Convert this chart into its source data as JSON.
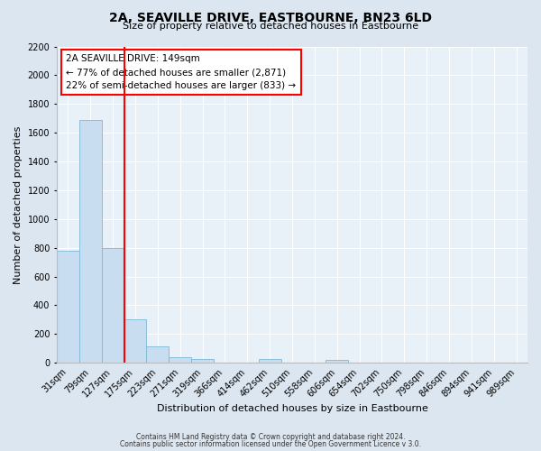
{
  "title": "2A, SEAVILLE DRIVE, EASTBOURNE, BN23 6LD",
  "subtitle": "Size of property relative to detached houses in Eastbourne",
  "xlabel": "Distribution of detached houses by size in Eastbourne",
  "ylabel": "Number of detached properties",
  "bar_labels": [
    "31sqm",
    "79sqm",
    "127sqm",
    "175sqm",
    "223sqm",
    "271sqm",
    "319sqm",
    "366sqm",
    "414sqm",
    "462sqm",
    "510sqm",
    "558sqm",
    "606sqm",
    "654sqm",
    "702sqm",
    "750sqm",
    "798sqm",
    "846sqm",
    "894sqm",
    "941sqm",
    "989sqm"
  ],
  "bar_values": [
    780,
    1690,
    800,
    300,
    115,
    38,
    28,
    0,
    0,
    25,
    0,
    0,
    20,
    0,
    0,
    0,
    0,
    0,
    0,
    0,
    0
  ],
  "bar_color": "#c9ddf0",
  "bar_edge_color": "#7db8d8",
  "vline_x": 2.5,
  "vline_color": "red",
  "annotation_title": "2A SEAVILLE DRIVE: 149sqm",
  "annotation_line1": "← 77% of detached houses are smaller (2,871)",
  "annotation_line2": "22% of semi-detached houses are larger (833) →",
  "ylim": [
    0,
    2200
  ],
  "yticks": [
    0,
    200,
    400,
    600,
    800,
    1000,
    1200,
    1400,
    1600,
    1800,
    2000,
    2200
  ],
  "footer1": "Contains HM Land Registry data © Crown copyright and database right 2024.",
  "footer2": "Contains public sector information licensed under the Open Government Licence v 3.0.",
  "bg_color": "#dce6f0",
  "plot_bg_color": "#e8f0f8",
  "grid_color": "#ffffff",
  "title_fontsize": 10,
  "subtitle_fontsize": 8,
  "xlabel_fontsize": 8,
  "ylabel_fontsize": 8,
  "tick_fontsize": 7,
  "annotation_fontsize": 7.5,
  "footer_fontsize": 5.5
}
